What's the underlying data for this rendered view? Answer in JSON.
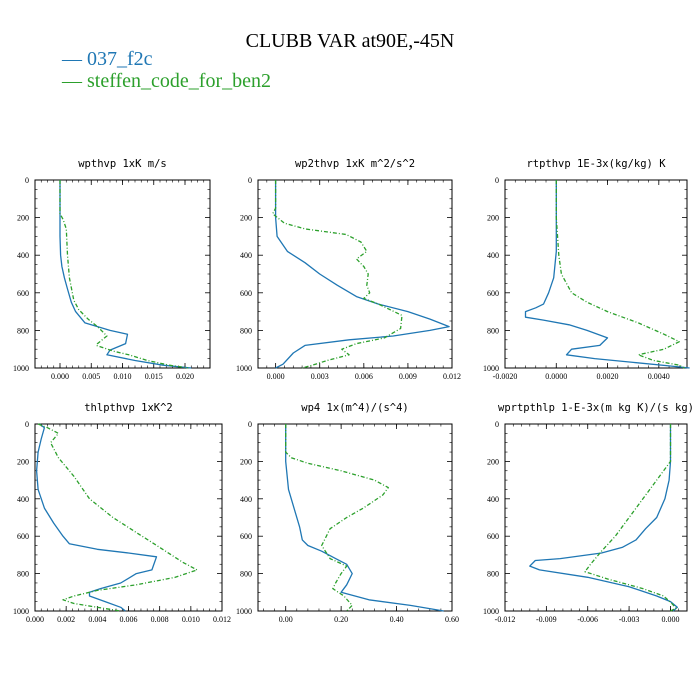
{
  "title": "CLUBB VAR at90E,-45N",
  "legend": [
    {
      "label": "037_f2c",
      "color": "#1f77b4"
    },
    {
      "label": "steffen_code_for_ben2",
      "color": "#2ca02c"
    }
  ],
  "chart_data": [
    {
      "type": "line",
      "title": "wpthvp   1xK m/s",
      "ylim": [
        1000,
        0
      ],
      "xlim": [
        -0.004,
        0.024
      ],
      "xticks": [
        "0.000",
        "0.005",
        "0.010",
        "0.015",
        "0.020"
      ],
      "xtick_values": [
        0,
        0.005,
        0.01,
        0.015,
        0.02
      ],
      "yticks": [
        "0",
        "200",
        "400",
        "600",
        "800",
        "1000"
      ],
      "series": [
        {
          "name": "037_f2c",
          "points": [
            [
              0,
              0
            ],
            [
              0,
              200
            ],
            [
              0,
              300
            ],
            [
              0.0001,
              400
            ],
            [
              0.0003,
              460
            ],
            [
              0.0007,
              520
            ],
            [
              0.0012,
              580
            ],
            [
              0.0018,
              650
            ],
            [
              0.0025,
              700
            ],
            [
              0.004,
              760
            ],
            [
              0.008,
              800
            ],
            [
              0.0108,
              820
            ],
            [
              0.0105,
              870
            ],
            [
              0.008,
              905
            ],
            [
              0.0075,
              930
            ],
            [
              0.012,
              960
            ],
            [
              0.0165,
              985
            ],
            [
              0.021,
              1000
            ]
          ]
        },
        {
          "name": "steffen_code_for_ben2",
          "points": [
            [
              0,
              0
            ],
            [
              0,
              180
            ],
            [
              0.0005,
              210
            ],
            [
              0.001,
              260
            ],
            [
              0.0012,
              400
            ],
            [
              0.0015,
              520
            ],
            [
              0.0022,
              640
            ],
            [
              0.003,
              690
            ],
            [
              0.0045,
              740
            ],
            [
              0.006,
              780
            ],
            [
              0.0075,
              830
            ],
            [
              0.006,
              870
            ],
            [
              0.0058,
              880
            ],
            [
              0.0085,
              910
            ],
            [
              0.011,
              930
            ],
            [
              0.014,
              960
            ],
            [
              0.0175,
              985
            ],
            [
              0.0205,
              1000
            ]
          ]
        }
      ]
    },
    {
      "type": "line",
      "title": "wp2thvp   1xK m^2/s^2",
      "ylim": [
        1000,
        0
      ],
      "xlim": [
        -0.0012,
        0.012
      ],
      "xticks": [
        "0.000",
        "0.003",
        "0.006",
        "0.009",
        "0.012"
      ],
      "xtick_values": [
        0,
        0.003,
        0.006,
        0.009,
        0.012
      ],
      "yticks": [
        "0",
        "200",
        "400",
        "600",
        "800",
        "1000"
      ],
      "series": [
        {
          "name": "037_f2c",
          "points": [
            [
              0,
              0
            ],
            [
              0,
              200
            ],
            [
              0.0001,
              300
            ],
            [
              0.0008,
              380
            ],
            [
              0.002,
              440
            ],
            [
              0.003,
              500
            ],
            [
              0.0042,
              560
            ],
            [
              0.0055,
              620
            ],
            [
              0.007,
              660
            ],
            [
              0.009,
              700
            ],
            [
              0.0105,
              740
            ],
            [
              0.0118,
              780
            ],
            [
              0.0105,
              800
            ],
            [
              0.008,
              830
            ],
            [
              0.005,
              850
            ],
            [
              0.002,
              880
            ],
            [
              0.0012,
              920
            ],
            [
              0.0005,
              980
            ],
            [
              0,
              1000
            ]
          ]
        },
        {
          "name": "steffen_code_for_ben2",
          "points": [
            [
              0,
              0
            ],
            [
              0,
              150
            ],
            [
              -0.0002,
              180
            ],
            [
              0.0006,
              230
            ],
            [
              0.002,
              260
            ],
            [
              0.0048,
              290
            ],
            [
              0.0058,
              330
            ],
            [
              0.0062,
              380
            ],
            [
              0.0055,
              420
            ],
            [
              0.006,
              460
            ],
            [
              0.0063,
              500
            ],
            [
              0.0062,
              560
            ],
            [
              0.0064,
              600
            ],
            [
              0.006,
              630
            ],
            [
              0.007,
              660
            ],
            [
              0.0086,
              720
            ],
            [
              0.0085,
              790
            ],
            [
              0.0074,
              840
            ],
            [
              0.0055,
              870
            ],
            [
              0.0045,
              900
            ],
            [
              0.005,
              930
            ],
            [
              0.0035,
              960
            ],
            [
              0.0025,
              985
            ],
            [
              0.0018,
              1000
            ]
          ]
        }
      ]
    },
    {
      "type": "line",
      "title": "rtpthvp   1E-3x(kg/kg) K",
      "ylim": [
        1000,
        0
      ],
      "xlim": [
        -0.002,
        0.0051
      ],
      "xticks": [
        "-0.0020",
        "0.0000",
        "0.0020",
        "0.0040"
      ],
      "xtick_values": [
        -0.002,
        0,
        0.002,
        0.004
      ],
      "yticks": [
        "0",
        "200",
        "400",
        "600",
        "800",
        "1000"
      ],
      "series": [
        {
          "name": "037_f2c",
          "points": [
            [
              0,
              0
            ],
            [
              0,
              200
            ],
            [
              0,
              380
            ],
            [
              -0.0001,
              520
            ],
            [
              -0.0003,
              600
            ],
            [
              -0.0005,
              660
            ],
            [
              -0.0008,
              680
            ],
            [
              -0.0012,
              700
            ],
            [
              -0.0012,
              730
            ],
            [
              -0.0005,
              745
            ],
            [
              0.0005,
              770
            ],
            [
              0.0012,
              800
            ],
            [
              0.002,
              840
            ],
            [
              0.0017,
              880
            ],
            [
              0.0006,
              900
            ],
            [
              0.0004,
              930
            ],
            [
              0.0015,
              950
            ],
            [
              0.003,
              970
            ],
            [
              0.0045,
              990
            ],
            [
              0.0052,
              1000
            ]
          ]
        },
        {
          "name": "steffen_code_for_ben2",
          "points": [
            [
              0,
              0
            ],
            [
              0,
              200
            ],
            [
              0.0001,
              400
            ],
            [
              0.0002,
              500
            ],
            [
              0.0006,
              600
            ],
            [
              0.0012,
              650
            ],
            [
              0.002,
              700
            ],
            [
              0.0032,
              760
            ],
            [
              0.0042,
              820
            ],
            [
              0.0048,
              860
            ],
            [
              0.0042,
              900
            ],
            [
              0.0032,
              930
            ],
            [
              0.0038,
              960
            ],
            [
              0.0048,
              985
            ],
            [
              0.005,
              1000
            ]
          ]
        }
      ]
    },
    {
      "type": "line",
      "title": "thlpthvp   1xK^2",
      "ylim": [
        1000,
        0
      ],
      "xlim": [
        0,
        0.012
      ],
      "xticks": [
        "0.000",
        "0.002",
        "0.004",
        "0.006",
        "0.008",
        "0.010",
        "0.012"
      ],
      "xtick_values": [
        0,
        0.002,
        0.004,
        0.006,
        0.008,
        0.01,
        0.012
      ],
      "yticks": [
        "0",
        "200",
        "400",
        "600",
        "800",
        "1000"
      ],
      "series": [
        {
          "name": "037_f2c",
          "points": [
            [
              0.0003,
              0
            ],
            [
              0.0006,
              20
            ],
            [
              0.0004,
              80
            ],
            [
              0.0002,
              150
            ],
            [
              0.0001,
              250
            ],
            [
              0.0002,
              350
            ],
            [
              0.0006,
              450
            ],
            [
              0.0012,
              530
            ],
            [
              0.0018,
              600
            ],
            [
              0.0022,
              640
            ],
            [
              0.004,
              670
            ],
            [
              0.006,
              690
            ],
            [
              0.0078,
              710
            ],
            [
              0.0075,
              780
            ],
            [
              0.0065,
              800
            ],
            [
              0.0055,
              850
            ],
            [
              0.0042,
              880
            ],
            [
              0.0035,
              900
            ],
            [
              0.0035,
              920
            ],
            [
              0.0045,
              950
            ],
            [
              0.0055,
              980
            ],
            [
              0.0058,
              1000
            ]
          ]
        },
        {
          "name": "steffen_code_for_ben2",
          "points": [
            [
              0.0002,
              0
            ],
            [
              0.0008,
              20
            ],
            [
              0.0015,
              50
            ],
            [
              0.001,
              100
            ],
            [
              0.0015,
              180
            ],
            [
              0.0025,
              280
            ],
            [
              0.0035,
              400
            ],
            [
              0.005,
              500
            ],
            [
              0.0065,
              580
            ],
            [
              0.008,
              660
            ],
            [
              0.0095,
              740
            ],
            [
              0.0104,
              780
            ],
            [
              0.009,
              820
            ],
            [
              0.0065,
              860
            ],
            [
              0.004,
              890
            ],
            [
              0.0025,
              920
            ],
            [
              0.0018,
              940
            ],
            [
              0.0025,
              960
            ],
            [
              0.004,
              980
            ],
            [
              0.0055,
              1000
            ]
          ]
        }
      ]
    },
    {
      "type": "line",
      "title": "wp4   1x(m^4)/(s^4)",
      "ylim": [
        1000,
        0
      ],
      "xlim": [
        -0.1,
        0.6
      ],
      "xticks": [
        "0.00",
        "0.20",
        "0.40",
        "0.60"
      ],
      "xtick_values": [
        0,
        0.2,
        0.4,
        0.6
      ],
      "yticks": [
        "0",
        "200",
        "400",
        "600",
        "800",
        "1000"
      ],
      "series": [
        {
          "name": "037_f2c",
          "points": [
            [
              0,
              0
            ],
            [
              0,
              200
            ],
            [
              0.01,
              350
            ],
            [
              0.03,
              450
            ],
            [
              0.05,
              550
            ],
            [
              0.06,
              620
            ],
            [
              0.08,
              650
            ],
            [
              0.13,
              680
            ],
            [
              0.18,
              720
            ],
            [
              0.22,
              750
            ],
            [
              0.24,
              800
            ],
            [
              0.22,
              860
            ],
            [
              0.2,
              900
            ],
            [
              0.3,
              940
            ],
            [
              0.45,
              970
            ],
            [
              0.57,
              1000
            ]
          ]
        },
        {
          "name": "steffen_code_for_ben2",
          "points": [
            [
              0,
              0
            ],
            [
              0,
              150
            ],
            [
              0.02,
              180
            ],
            [
              0.08,
              210
            ],
            [
              0.2,
              250
            ],
            [
              0.32,
              300
            ],
            [
              0.37,
              340
            ],
            [
              0.35,
              380
            ],
            [
              0.28,
              450
            ],
            [
              0.22,
              500
            ],
            [
              0.16,
              560
            ],
            [
              0.13,
              650
            ],
            [
              0.16,
              720
            ],
            [
              0.22,
              760
            ],
            [
              0.2,
              800
            ],
            [
              0.18,
              850
            ],
            [
              0.17,
              880
            ],
            [
              0.21,
              920
            ],
            [
              0.24,
              970
            ],
            [
              0.22,
              1000
            ]
          ]
        }
      ]
    },
    {
      "type": "line",
      "title": "wprtpthlp   1-E-3x(m kg K)/(s kg)",
      "ylim": [
        1000,
        0
      ],
      "xlim": [
        -0.012,
        0.0012
      ],
      "xticks": [
        "-0.012",
        "-0.009",
        "-0.006",
        "-0.003",
        "0.000"
      ],
      "xtick_values": [
        -0.012,
        -0.009,
        -0.006,
        -0.003,
        0
      ],
      "yticks": [
        "0",
        "200",
        "400",
        "600",
        "800",
        "1000"
      ],
      "series": [
        {
          "name": "037_f2c",
          "points": [
            [
              0,
              0
            ],
            [
              0,
              200
            ],
            [
              -0.0001,
              300
            ],
            [
              -0.0004,
              400
            ],
            [
              -0.001,
              500
            ],
            [
              -0.0018,
              560
            ],
            [
              -0.0025,
              620
            ],
            [
              -0.0035,
              660
            ],
            [
              -0.005,
              690
            ],
            [
              -0.008,
              720
            ],
            [
              -0.0098,
              730
            ],
            [
              -0.0102,
              760
            ],
            [
              -0.0095,
              780
            ],
            [
              -0.006,
              820
            ],
            [
              -0.003,
              870
            ],
            [
              -0.001,
              920
            ],
            [
              0,
              950
            ],
            [
              0.0005,
              980
            ],
            [
              0.0002,
              1000
            ]
          ]
        },
        {
          "name": "steffen_code_for_ben2",
          "points": [
            [
              0,
              0
            ],
            [
              0,
              200
            ],
            [
              -0.001,
              300
            ],
            [
              -0.002,
              400
            ],
            [
              -0.003,
              500
            ],
            [
              -0.004,
              600
            ],
            [
              -0.005,
              680
            ],
            [
              -0.0058,
              750
            ],
            [
              -0.0062,
              790
            ],
            [
              -0.0045,
              830
            ],
            [
              -0.002,
              880
            ],
            [
              -0.0005,
              920
            ],
            [
              0.0001,
              960
            ],
            [
              0.0004,
              985
            ],
            [
              0,
              1000
            ]
          ]
        }
      ]
    }
  ]
}
